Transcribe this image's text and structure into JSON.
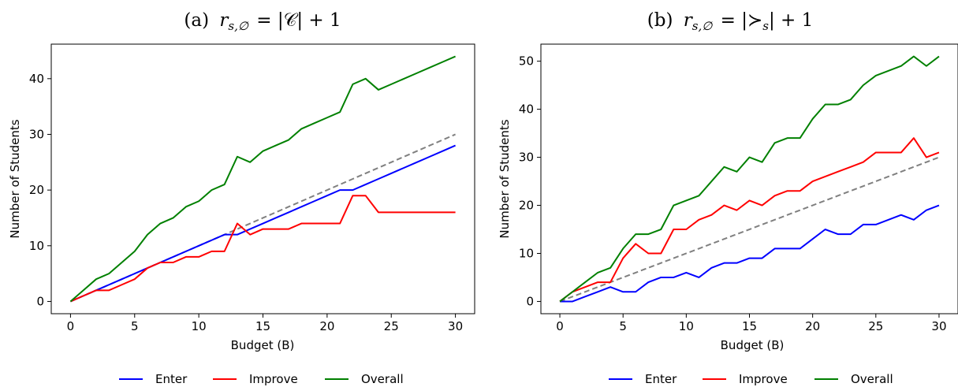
{
  "chart_data": [
    {
      "type": "line",
      "title": "(a) r_{s,∅} = |𝒞| + 1",
      "title_parts": {
        "prefix": "(a)",
        "var": "r",
        "sub": "s,∅",
        "rhs": "= |𝒞| + 1"
      },
      "xlabel": "Budget (B)",
      "ylabel": "Number of Students",
      "xlim": [
        -1.5,
        31.5
      ],
      "ylim": [
        -2.2,
        46.2
      ],
      "xticks": [
        0,
        5,
        10,
        15,
        20,
        25,
        30
      ],
      "yticks": [
        0,
        10,
        20,
        30,
        40
      ],
      "grid": false,
      "legend_position": "bottom-center",
      "x": [
        0,
        1,
        2,
        3,
        4,
        5,
        6,
        7,
        8,
        9,
        10,
        11,
        12,
        13,
        14,
        15,
        16,
        17,
        18,
        19,
        20,
        21,
        22,
        23,
        24,
        25,
        26,
        27,
        28,
        29,
        30
      ],
      "series": [
        {
          "name": "Enter",
          "color": "#0000ff",
          "dashed": false,
          "values": [
            0,
            1,
            2,
            3,
            4,
            5,
            6,
            7,
            8,
            9,
            10,
            11,
            12,
            12,
            13,
            14,
            15,
            16,
            17,
            18,
            19,
            20,
            20,
            21,
            22,
            23,
            24,
            25,
            26,
            27,
            28
          ]
        },
        {
          "name": "Improve",
          "color": "#ff0000",
          "dashed": false,
          "values": [
            0,
            1,
            2,
            2,
            3,
            4,
            6,
            7,
            7,
            8,
            8,
            9,
            9,
            14,
            12,
            13,
            13,
            13,
            14,
            14,
            14,
            14,
            19,
            19,
            16,
            16,
            16,
            16,
            16,
            16,
            16
          ]
        },
        {
          "name": "Overall",
          "color": "#008000",
          "dashed": false,
          "values": [
            0,
            2,
            4,
            5,
            7,
            9,
            12,
            14,
            15,
            17,
            18,
            20,
            21,
            26,
            25,
            27,
            28,
            29,
            31,
            32,
            33,
            34,
            39,
            40,
            38,
            39,
            40,
            41,
            42,
            43,
            44
          ]
        },
        {
          "name": "",
          "color": "#808080",
          "dashed": true,
          "values": [
            0,
            1,
            2,
            3,
            4,
            5,
            6,
            7,
            8,
            9,
            10,
            11,
            12,
            13,
            14,
            15,
            16,
            17,
            18,
            19,
            20,
            21,
            22,
            23,
            24,
            25,
            26,
            27,
            28,
            29,
            30
          ]
        }
      ]
    },
    {
      "type": "line",
      "title": "(b) r_{s,∅} = |≻_s| + 1",
      "title_parts": {
        "prefix": "(b)",
        "var": "r",
        "sub": "s,∅",
        "rhs_open": "= |≻",
        "rhs_sub": "s",
        "rhs_close": "| + 1"
      },
      "xlabel": "Budget (B)",
      "ylabel": "Number of Students",
      "xlim": [
        -1.5,
        31.5
      ],
      "ylim": [
        -2.55,
        53.55
      ],
      "xticks": [
        0,
        5,
        10,
        15,
        20,
        25,
        30
      ],
      "yticks": [
        0,
        10,
        20,
        30,
        40,
        50
      ],
      "grid": false,
      "legend_position": "bottom-center",
      "x": [
        0,
        1,
        2,
        3,
        4,
        5,
        6,
        7,
        8,
        9,
        10,
        11,
        12,
        13,
        14,
        15,
        16,
        17,
        18,
        19,
        20,
        21,
        22,
        23,
        24,
        25,
        26,
        27,
        28,
        29,
        30
      ],
      "series": [
        {
          "name": "Enter",
          "color": "#0000ff",
          "dashed": false,
          "values": [
            0,
            0,
            1,
            2,
            3,
            2,
            2,
            4,
            5,
            5,
            6,
            5,
            7,
            8,
            8,
            9,
            9,
            11,
            11,
            11,
            13,
            15,
            14,
            14,
            16,
            16,
            17,
            18,
            17,
            19,
            20
          ]
        },
        {
          "name": "Improve",
          "color": "#ff0000",
          "dashed": false,
          "values": [
            0,
            2,
            3,
            4,
            4,
            9,
            12,
            10,
            10,
            15,
            15,
            17,
            18,
            20,
            19,
            21,
            20,
            22,
            23,
            23,
            25,
            26,
            27,
            28,
            29,
            31,
            31,
            31,
            34,
            30,
            31
          ]
        },
        {
          "name": "Overall",
          "color": "#008000",
          "dashed": false,
          "values": [
            0,
            2,
            4,
            6,
            7,
            11,
            14,
            14,
            15,
            20,
            21,
            22,
            25,
            28,
            27,
            30,
            29,
            33,
            34,
            34,
            38,
            41,
            41,
            42,
            45,
            47,
            48,
            49,
            51,
            49,
            51
          ]
        },
        {
          "name": "",
          "color": "#808080",
          "dashed": true,
          "values": [
            0,
            1,
            2,
            3,
            4,
            5,
            6,
            7,
            8,
            9,
            10,
            11,
            12,
            13,
            14,
            15,
            16,
            17,
            18,
            19,
            20,
            21,
            22,
            23,
            24,
            25,
            26,
            27,
            28,
            29,
            30
          ]
        }
      ]
    }
  ]
}
